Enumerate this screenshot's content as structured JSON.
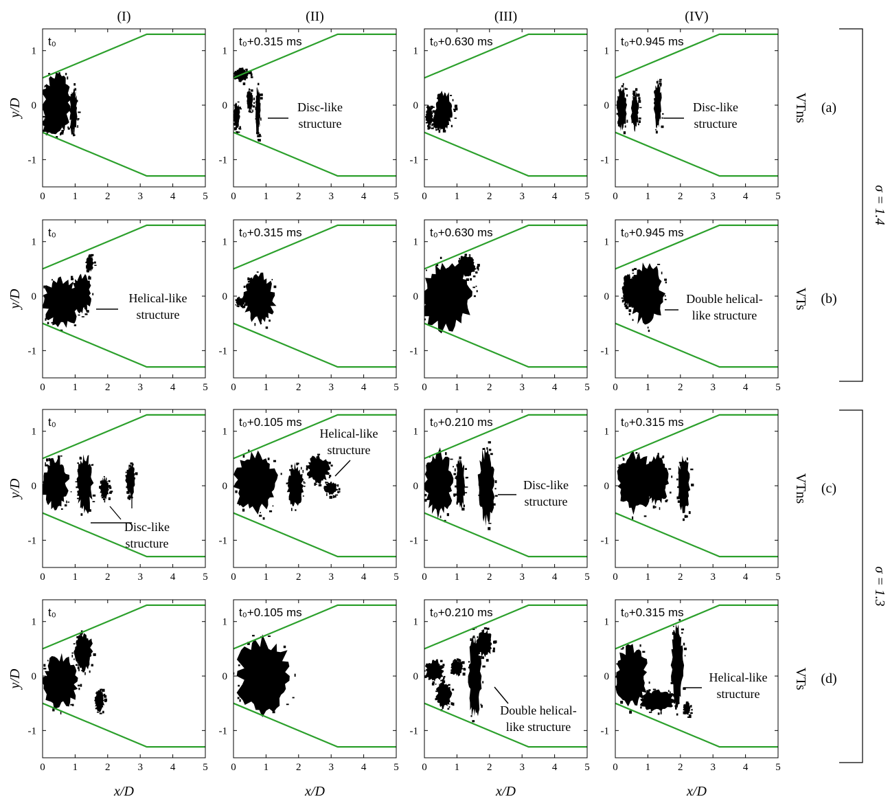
{
  "figure": {
    "column_headers": [
      "(I)",
      "(II)",
      "(III)",
      "(IV)"
    ],
    "row_types": [
      "VTns",
      "VTs",
      "VTns",
      "VTs"
    ],
    "row_labels": [
      "(a)",
      "(b)",
      "(c)",
      "(d)"
    ],
    "sigma_labels": [
      {
        "text": "σ = 1.4",
        "rows": [
          0,
          1
        ]
      },
      {
        "text": "σ = 1.3",
        "rows": [
          2,
          3
        ]
      }
    ],
    "xlabel": "x/D",
    "ylabel": "y/D",
    "xlim": [
      0,
      5
    ],
    "ylim": [
      -1.5,
      1.4
    ],
    "xticks": [
      "0",
      "1",
      "2",
      "3",
      "4",
      "5"
    ],
    "yticks": [
      "1",
      "0",
      "-1"
    ],
    "nozzle_color": "#2ca02c",
    "cavity_color": "#000000",
    "time_labels": [
      [
        "t₀",
        "t₀+0.315 ms",
        "t₀+0.630 ms",
        "t₀+0.945 ms"
      ],
      [
        "t₀",
        "t₀+0.315 ms",
        "t₀+0.630 ms",
        "t₀+0.945 ms"
      ],
      [
        "t₀",
        "t₀+0.105 ms",
        "t₀+0.210 ms",
        "t₀+0.315 ms"
      ],
      [
        "t₀",
        "t₀+0.105 ms",
        "t₀+0.210 ms",
        "t₀+0.315 ms"
      ]
    ],
    "annotations": [
      {
        "row": 0,
        "col": 1,
        "lines": [
          "Disc-like",
          "structure"
        ]
      },
      {
        "row": 0,
        "col": 3,
        "lines": [
          "Disc-like",
          "structure"
        ]
      },
      {
        "row": 1,
        "col": 0,
        "lines": [
          "Helical-like",
          "structure"
        ]
      },
      {
        "row": 1,
        "col": 3,
        "lines": [
          "Double helical-",
          "like structure"
        ]
      },
      {
        "row": 2,
        "col": 0,
        "lines": [
          "Disc-like",
          "structure"
        ]
      },
      {
        "row": 2,
        "col": 1,
        "lines": [
          "Helical-like",
          "structure"
        ]
      },
      {
        "row": 2,
        "col": 2,
        "lines": [
          "Disc-like",
          "structure"
        ]
      },
      {
        "row": 3,
        "col": 2,
        "lines": [
          "Double helical-",
          "like structure"
        ]
      },
      {
        "row": 3,
        "col": 3,
        "lines": [
          "Helical-like",
          "structure"
        ]
      }
    ]
  },
  "chart_data": {
    "type": "scatter",
    "xlabel": "x/D",
    "ylabel": "y/D",
    "xlim": [
      0,
      5
    ],
    "ylim": [
      -1.5,
      1.4
    ],
    "nozzle_wall": {
      "upper": [
        [
          0,
          0.5
        ],
        [
          3.2,
          1.3
        ],
        [
          5,
          1.3
        ]
      ],
      "lower": [
        [
          0,
          -0.5
        ],
        [
          3.2,
          -1.3
        ],
        [
          5,
          -1.3
        ]
      ]
    },
    "cavity_extents": [
      {
        "row": "a",
        "col": "I",
        "x": [
          0,
          1.1
        ],
        "y": [
          -0.55,
          0.65
        ]
      },
      {
        "row": "a",
        "col": "II",
        "x": [
          0,
          0.85
        ],
        "y": [
          -0.5,
          0.7
        ]
      },
      {
        "row": "a",
        "col": "III",
        "x": [
          0,
          0.95
        ],
        "y": [
          -0.45,
          0.5
        ]
      },
      {
        "row": "a",
        "col": "IV",
        "x": [
          0,
          1.4
        ],
        "y": [
          -0.5,
          0.5
        ]
      },
      {
        "row": "b",
        "col": "I",
        "x": [
          0,
          1.75
        ],
        "y": [
          -0.65,
          0.75
        ]
      },
      {
        "row": "b",
        "col": "II",
        "x": [
          0,
          1.35
        ],
        "y": [
          -0.55,
          0.45
        ]
      },
      {
        "row": "b",
        "col": "III",
        "x": [
          0,
          1.65
        ],
        "y": [
          -0.75,
          0.8
        ]
      },
      {
        "row": "b",
        "col": "IV",
        "x": [
          0.2,
          1.55
        ],
        "y": [
          -0.75,
          0.6
        ]
      },
      {
        "row": "c",
        "col": "I",
        "x": [
          0,
          2.9
        ],
        "y": [
          -0.55,
          0.65
        ]
      },
      {
        "row": "c",
        "col": "II",
        "x": [
          0,
          3.2
        ],
        "y": [
          -0.45,
          0.75
        ]
      },
      {
        "row": "c",
        "col": "III",
        "x": [
          0,
          2.15
        ],
        "y": [
          -0.7,
          0.75
        ]
      },
      {
        "row": "c",
        "col": "IV",
        "x": [
          0,
          2.3
        ],
        "y": [
          -0.7,
          0.7
        ]
      },
      {
        "row": "d",
        "col": "I",
        "x": [
          0,
          1.95
        ],
        "y": [
          -0.65,
          0.85
        ]
      },
      {
        "row": "d",
        "col": "II",
        "x": [
          0.1,
          1.9
        ],
        "y": [
          -0.75,
          0.75
        ]
      },
      {
        "row": "d",
        "col": "III",
        "x": [
          0,
          2.1
        ],
        "y": [
          -0.85,
          0.9
        ]
      },
      {
        "row": "d",
        "col": "IV",
        "x": [
          0,
          2.35
        ],
        "y": [
          -0.75,
          1.0
        ]
      }
    ]
  }
}
